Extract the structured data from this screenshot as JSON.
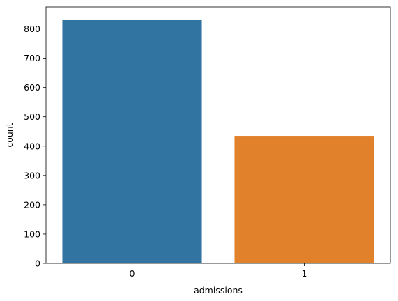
{
  "chart_data": {
    "type": "bar",
    "categories": [
      "0",
      "1"
    ],
    "values": [
      832,
      435
    ],
    "xlabel": "admissions",
    "ylabel": "count",
    "ylim": [
      0,
      875
    ],
    "yticks": [
      0,
      100,
      200,
      300,
      400,
      500,
      600,
      700,
      800
    ],
    "grid": false,
    "legend": "none",
    "colors": [
      "#3274a1",
      "#e1812c"
    ]
  }
}
